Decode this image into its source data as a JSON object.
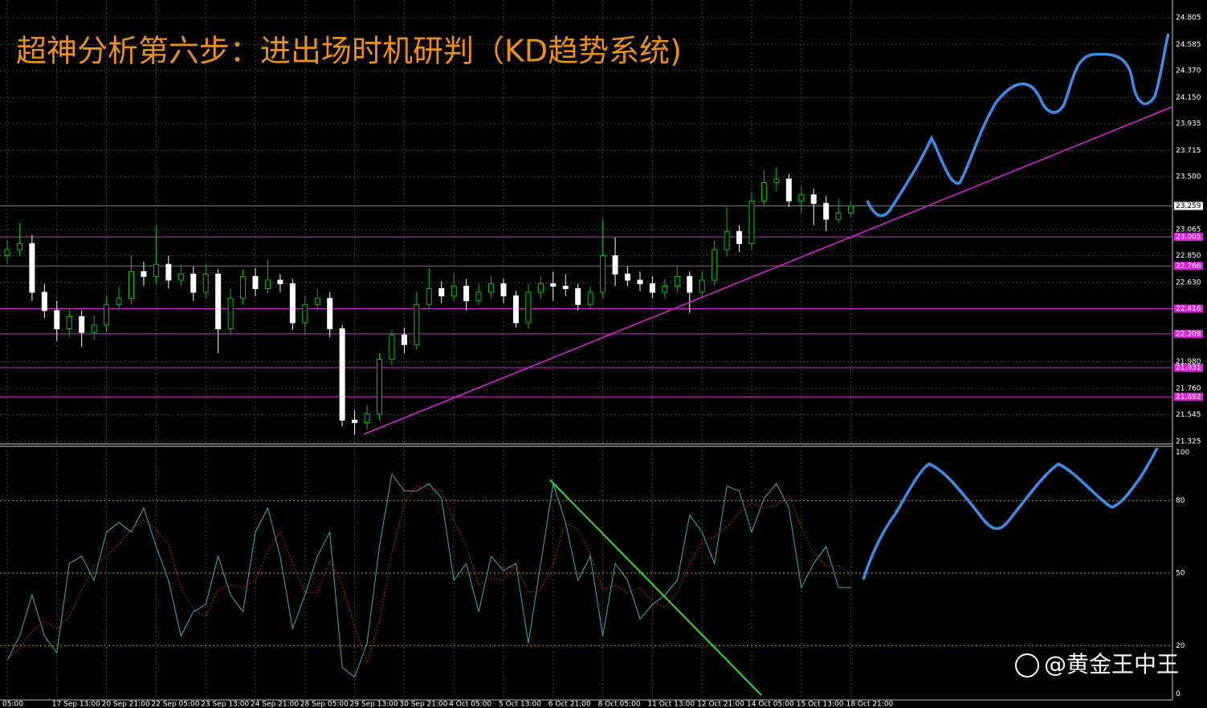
{
  "chart_data": [
    {
      "type": "candlestick",
      "title": "超神分析第六步：进出场时机研判（KD趋势系统)",
      "categories": [
        "05:00",
        null,
        null,
        null,
        "17 Sep 13:00",
        null,
        null,
        null,
        "20 Sep 21:00",
        null,
        null,
        null,
        "22 Sep 05:00",
        null,
        null,
        null,
        "23 Sep 13:00",
        null,
        null,
        null,
        "24 Sep 21:00",
        null,
        null,
        null,
        "28 Sep 05:00",
        null,
        null,
        null,
        "29 Sep 13:00",
        null,
        null,
        null,
        "30 Sep 21:00",
        null,
        null,
        null,
        "4 Oct 05:00",
        null,
        null,
        null,
        "5 Oct 13:00",
        null,
        null,
        null,
        "6 Oct 21:00",
        null,
        null,
        null,
        "8 Oct 05:00",
        null,
        null,
        null,
        "11 Oct 13:00",
        null,
        null,
        null,
        "12 Oct 21:00",
        null,
        null,
        null,
        "14 Oct 05:00",
        null,
        null,
        null,
        "15 Oct 13:00",
        null,
        null,
        null,
        "18 Oct 21:00"
      ],
      "open": [
        22.85,
        22.9,
        22.95,
        22.55,
        22.4,
        22.25,
        22.35,
        22.22,
        22.28,
        22.45,
        22.5,
        22.72,
        22.68,
        22.78,
        22.65,
        22.7,
        22.55,
        22.7,
        22.25,
        22.5,
        22.68,
        22.58,
        22.65,
        22.62,
        22.3,
        22.45,
        22.5,
        22.25,
        21.5,
        21.48,
        21.55,
        22.0,
        22.2,
        22.12,
        22.45,
        22.58,
        22.52,
        22.6,
        22.48,
        22.55,
        22.62,
        22.52,
        22.3,
        22.55,
        22.62,
        22.6,
        22.58,
        22.45,
        22.55,
        22.85,
        22.7,
        22.65,
        22.62,
        22.55,
        22.6,
        22.68,
        22.55,
        22.65,
        22.9,
        23.05,
        22.95,
        23.3,
        23.45,
        23.48,
        23.3,
        23.35,
        23.28,
        23.15,
        23.2
      ],
      "high": [
        22.98,
        23.12,
        23.02,
        22.62,
        22.48,
        22.42,
        22.4,
        22.36,
        22.52,
        22.6,
        22.85,
        22.8,
        23.1,
        22.85,
        22.78,
        22.76,
        22.78,
        22.74,
        22.58,
        22.74,
        22.75,
        22.82,
        22.7,
        22.66,
        22.52,
        22.58,
        22.55,
        22.28,
        21.58,
        21.62,
        22.05,
        22.24,
        22.26,
        22.55,
        22.75,
        22.64,
        22.7,
        22.66,
        22.62,
        22.68,
        22.66,
        22.56,
        22.62,
        22.68,
        22.72,
        22.7,
        22.62,
        22.6,
        23.15,
        23.0,
        22.76,
        22.72,
        22.68,
        22.66,
        22.76,
        22.72,
        22.72,
        22.98,
        23.25,
        23.1,
        23.38,
        23.55,
        23.58,
        23.52,
        23.42,
        23.4,
        23.34,
        23.32,
        23.3
      ],
      "low": [
        22.78,
        22.85,
        22.48,
        22.34,
        22.15,
        22.18,
        22.1,
        22.16,
        22.22,
        22.4,
        22.45,
        22.6,
        22.62,
        22.58,
        22.6,
        22.48,
        22.5,
        22.05,
        22.2,
        22.45,
        22.52,
        22.54,
        22.55,
        22.24,
        22.2,
        22.4,
        22.18,
        21.45,
        21.38,
        21.42,
        21.5,
        21.95,
        22.05,
        22.08,
        22.4,
        22.46,
        22.48,
        22.4,
        22.44,
        22.5,
        22.46,
        22.26,
        22.25,
        22.5,
        22.48,
        22.52,
        22.4,
        22.42,
        22.5,
        22.6,
        22.6,
        22.56,
        22.5,
        22.5,
        22.55,
        22.38,
        22.5,
        22.6,
        22.85,
        22.88,
        22.9,
        23.25,
        23.38,
        23.25,
        23.2,
        23.1,
        23.05,
        23.12,
        23.16
      ],
      "close": [
        22.9,
        22.95,
        22.55,
        22.4,
        22.25,
        22.35,
        22.22,
        22.28,
        22.45,
        22.5,
        22.72,
        22.68,
        22.78,
        22.65,
        22.7,
        22.55,
        22.7,
        22.25,
        22.5,
        22.68,
        22.58,
        22.65,
        22.62,
        22.3,
        22.45,
        22.5,
        22.25,
        21.5,
        21.48,
        21.55,
        22.0,
        22.2,
        22.12,
        22.45,
        22.58,
        22.52,
        22.6,
        22.48,
        22.55,
        22.62,
        22.52,
        22.3,
        22.55,
        22.62,
        22.6,
        22.58,
        22.45,
        22.55,
        22.85,
        22.7,
        22.65,
        22.62,
        22.55,
        22.6,
        22.68,
        22.55,
        22.65,
        22.9,
        23.05,
        22.95,
        23.3,
        23.45,
        23.48,
        23.3,
        23.35,
        23.28,
        23.15,
        23.2,
        23.259
      ],
      "up_color": "#00c800",
      "down_color": "#ffffff",
      "ylim": [
        21.305,
        24.95
      ],
      "yticks": [
        24.805,
        24.585,
        {
          "value": 24.37,
          "label": "24.370"
        },
        {
          "value": 24.15,
          "label": "24.150"
        },
        23.935,
        23.715,
        {
          "value": 23.5,
          "label": "23.500"
        },
        23.065,
        {
          "value": 22.85,
          "label": "22.850"
        },
        {
          "value": 22.63,
          "label": "22.630"
        },
        {
          "value": 21.98,
          "label": "21.980"
        },
        {
          "value": 21.76,
          "label": "21.760"
        },
        21.545,
        21.325
      ],
      "levels": [
        23.005,
        22.766,
        22.416,
        22.209,
        21.931,
        21.692
      ],
      "level_color": "#e020e0",
      "current_price": 23.259,
      "grid": true
    },
    {
      "type": "line",
      "series": [
        {
          "color": "#3fb0b0",
          "values": [
            14,
            24,
            41,
            24,
            17,
            54,
            57,
            47,
            67,
            71,
            67,
            77,
            61,
            47,
            24,
            34,
            37,
            57,
            41,
            34,
            67,
            77,
            57,
            27,
            41,
            57,
            67,
            11,
            7,
            21,
            61,
            91,
            84,
            84,
            87,
            81,
            47,
            54,
            34,
            57,
            51,
            54,
            21,
            54,
            87,
            71,
            47,
            57,
            24,
            54,
            47,
            31,
            37,
            41,
            47,
            74,
            67,
            54,
            86,
            84,
            67,
            81,
            87,
            77,
            44,
            54,
            61,
            44,
            44
          ]
        },
        {
          "color": "#d02020",
          "dashed": true,
          "values": [
            14,
            19,
            26,
            30,
            27,
            32,
            43,
            53,
            57,
            62,
            68,
            72,
            68,
            62,
            44,
            35,
            32,
            43,
            45,
            44,
            47,
            59,
            67,
            54,
            42,
            42,
            55,
            45,
            28,
            13,
            30,
            58,
            79,
            86,
            85,
            84,
            72,
            61,
            45,
            48,
            47,
            54,
            42,
            43,
            54,
            71,
            68,
            58,
            43,
            45,
            42,
            44,
            38,
            36,
            42,
            54,
            63,
            65,
            69,
            75,
            79,
            77,
            78,
            82,
            69,
            58,
            53,
            53,
            50
          ]
        }
      ],
      "ylim": [
        -2.5,
        102.5
      ],
      "yticks": [
        0,
        20,
        50,
        80,
        100
      ],
      "grid": true
    }
  ],
  "watermark": "@黄金王中王"
}
